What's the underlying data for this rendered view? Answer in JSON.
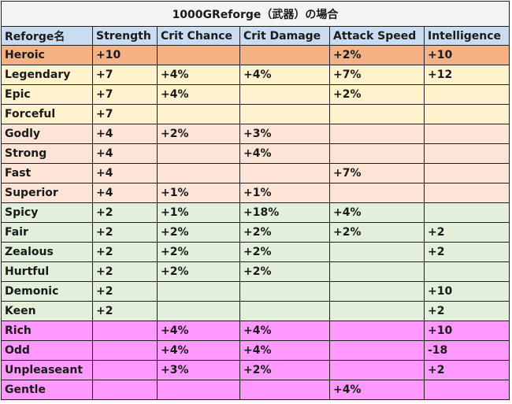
{
  "title": "1000GReforge（武器）の場合",
  "columns": [
    "Reforge名",
    "Strength",
    "Crit Chance",
    "Crit Damage",
    "Attack Speed",
    "Intelligence"
  ],
  "tier_colors": {
    "orange": "#f4b184",
    "yellow": "#fff2cc",
    "peach": "#fce4d6",
    "green": "#e2efda",
    "pink": "#ff99ff",
    "header": "#c9dcf1"
  },
  "rows": [
    {
      "tier": "orange",
      "cells": [
        "Heroic",
        "+10",
        "",
        "",
        "+2%",
        "+10"
      ]
    },
    {
      "tier": "yellow",
      "cells": [
        "Legendary",
        "+7",
        "+4%",
        "+4%",
        "+7%",
        "+12"
      ]
    },
    {
      "tier": "yellow",
      "cells": [
        "Epic",
        "+7",
        "+4%",
        "",
        "+2%",
        ""
      ]
    },
    {
      "tier": "yellow",
      "cells": [
        "Forceful",
        "+7",
        "",
        "",
        "",
        ""
      ]
    },
    {
      "tier": "peach",
      "cells": [
        "Godly",
        "+4",
        "+2%",
        "+3%",
        "",
        ""
      ]
    },
    {
      "tier": "peach",
      "cells": [
        "Strong",
        "+4",
        "",
        "+4%",
        "",
        ""
      ]
    },
    {
      "tier": "peach",
      "cells": [
        "Fast",
        "+4",
        "",
        "",
        "+7%",
        ""
      ]
    },
    {
      "tier": "peach",
      "cells": [
        "Superior",
        "+4",
        "+1%",
        "+1%",
        "",
        ""
      ]
    },
    {
      "tier": "green",
      "cells": [
        "Spicy",
        "+2",
        "+1%",
        "+18%",
        "+4%",
        ""
      ]
    },
    {
      "tier": "green",
      "cells": [
        "Fair",
        "+2",
        "+2%",
        "+2%",
        "+2%",
        "+2"
      ]
    },
    {
      "tier": "green",
      "cells": [
        "Zealous",
        "+2",
        "+2%",
        "+2%",
        "",
        "+2"
      ]
    },
    {
      "tier": "green",
      "cells": [
        "Hurtful",
        "+2",
        "+2%",
        "+2%",
        "",
        ""
      ]
    },
    {
      "tier": "green",
      "cells": [
        "Demonic",
        "+2",
        "",
        "",
        "",
        "+10"
      ]
    },
    {
      "tier": "green",
      "cells": [
        "Keen",
        "+2",
        "",
        "",
        "",
        "+2"
      ]
    },
    {
      "tier": "pink",
      "cells": [
        "Rich",
        "",
        "+4%",
        "+4%",
        "",
        "+10"
      ]
    },
    {
      "tier": "pink",
      "cells": [
        "Odd",
        "",
        "+4%",
        "+4%",
        "",
        "-18"
      ]
    },
    {
      "tier": "pink",
      "cells": [
        "Unpleaseant",
        "",
        "+3%",
        "+2%",
        "",
        "+2"
      ]
    },
    {
      "tier": "pink",
      "cells": [
        "Gentle",
        "",
        "",
        "",
        "+4%",
        ""
      ]
    }
  ]
}
